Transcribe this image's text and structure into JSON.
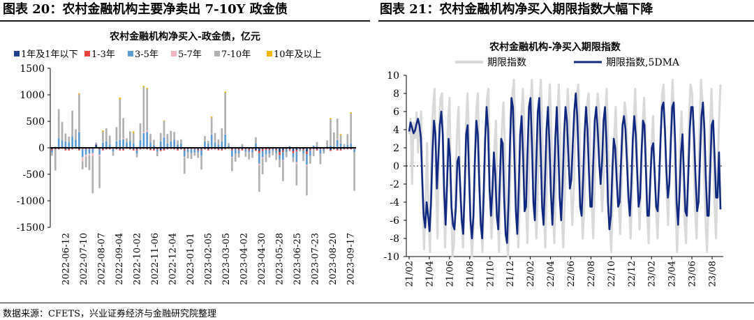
{
  "left_panel": {
    "title": "图表 20：农村金融机构主要净卖出 7-10Y 政金债"
  },
  "right_panel": {
    "title": "图表 21：农村金融机构净买入期限指数大幅下降"
  },
  "source": "数据来源：CFETS，兴业证券经济与金融研究院整理",
  "chart_data": [
    {
      "type": "bar",
      "stacked": true,
      "title": "农村金融机构净买入-政金债，亿元",
      "ylim": [
        -1500,
        1500
      ],
      "yticks": [
        -1500,
        -1000,
        -500,
        0,
        500,
        1000,
        1500
      ],
      "x_tick_labels": [
        "2022-06-12",
        "2022-07-10",
        "2022-08-07",
        "2022-09-04",
        "2022-10-02",
        "2022-11-06",
        "2022-12-04",
        "2023-01-01",
        "2023-02-05",
        "2023-03-05",
        "2023-04-02",
        "2023-04-30",
        "2023-05-28",
        "2023-06-25",
        "2023-07-23",
        "2023-08-20",
        "2023-09-17"
      ],
      "legend_position": "top",
      "series": [
        {
          "name": "1年及1年以下",
          "color": "#1f3f8f",
          "values": [
            -30,
            -20,
            -20,
            -10,
            -30,
            -30,
            -20,
            -10,
            -30,
            -15,
            -20,
            -10,
            -10,
            60,
            -20,
            -30,
            -20,
            -20,
            -10,
            -20,
            -30,
            -30,
            -10,
            -20,
            -30,
            -30,
            -20,
            -15,
            -20,
            -25,
            -30,
            -20,
            -40,
            -30,
            -20,
            -15,
            -20,
            -30,
            -20,
            -30,
            -20,
            -10,
            -20,
            -30,
            -30,
            -20,
            -30,
            -20,
            -20,
            -25,
            -30,
            -20,
            -10,
            -30,
            -20,
            -25,
            -30,
            -20,
            -30,
            -20,
            -40,
            -60,
            -30,
            -20,
            -25,
            -20,
            -30,
            -80,
            -50,
            -20,
            -30,
            -60,
            -40,
            -20,
            -30,
            -70,
            -30,
            -20,
            -30,
            -20,
            -20,
            -10,
            -40,
            -20,
            -30,
            -30,
            -20,
            -20,
            -20,
            -10
          ]
        },
        {
          "name": "1-3年",
          "color": "#e8403a",
          "values": [
            -20,
            -10,
            -10,
            -10,
            -20,
            -20,
            -10,
            -10,
            -20,
            -10,
            -10,
            -10,
            -10,
            0,
            -10,
            -20,
            -10,
            -10,
            -10,
            -10,
            -20,
            -20,
            -10,
            -10,
            -20,
            -20,
            -10,
            -10,
            -10,
            -20,
            -20,
            -10,
            -20,
            -20,
            -10,
            -10,
            -10,
            -20,
            -10,
            -20,
            -10,
            -10,
            -10,
            -20,
            -20,
            -10,
            -20,
            -10,
            -10,
            -20,
            -20,
            -10,
            -10,
            -20,
            -10,
            -20,
            -20,
            -10,
            -20,
            -10,
            -20,
            -40,
            -30,
            -20,
            -20,
            -10,
            -20,
            -60,
            -30,
            -10,
            -20,
            -40,
            -30,
            -10,
            -20,
            -50,
            -20,
            -10,
            -20,
            -10,
            -10,
            -10,
            -20,
            -10,
            -20,
            -20,
            -10,
            -10,
            -10,
            -10
          ]
        },
        {
          "name": "3-5年",
          "color": "#5b9bd5",
          "values": [
            -40,
            20,
            180,
            140,
            120,
            100,
            220,
            150,
            300,
            -150,
            -100,
            -90,
            -80,
            0,
            -100,
            100,
            120,
            60,
            -50,
            120,
            150,
            160,
            100,
            130,
            80,
            -60,
            150,
            280,
            300,
            100,
            50,
            -40,
            120,
            200,
            80,
            120,
            150,
            60,
            80,
            -120,
            -50,
            -80,
            -60,
            -40,
            -100,
            120,
            80,
            250,
            100,
            60,
            120,
            250,
            40,
            -120,
            -80,
            -60,
            20,
            -40,
            -30,
            -60,
            80,
            -200,
            -120,
            -80,
            -60,
            -30,
            -50,
            -80,
            -150,
            -50,
            30,
            -80,
            -200,
            -20,
            -60,
            -200,
            -100,
            40,
            30,
            -80,
            -30,
            20,
            40,
            30,
            150,
            80,
            30,
            60,
            80,
            -60
          ]
        },
        {
          "name": "5-7年",
          "color": "#f4b6c2",
          "values": [
            0,
            0,
            0,
            0,
            0,
            0,
            0,
            0,
            10,
            -80,
            -40,
            -30,
            -60,
            0,
            -30,
            10,
            0,
            0,
            0,
            0,
            10,
            20,
            0,
            0,
            0,
            0,
            10,
            20,
            30,
            0,
            0,
            0,
            0,
            10,
            0,
            0,
            0,
            0,
            0,
            -20,
            0,
            0,
            0,
            0,
            0,
            0,
            0,
            20,
            0,
            0,
            0,
            10,
            0,
            -20,
            0,
            0,
            0,
            0,
            0,
            0,
            0,
            -30,
            -20,
            0,
            0,
            0,
            0,
            0,
            -20,
            0,
            0,
            0,
            -40,
            0,
            0,
            -30,
            0,
            0,
            0,
            0,
            0,
            0,
            0,
            0,
            20,
            0,
            0,
            0,
            0,
            0
          ]
        },
        {
          "name": "7-10年",
          "color": "#b0b0b0",
          "values": [
            -60,
            -400,
            550,
            350,
            150,
            110,
            480,
            200,
            700,
            -150,
            -200,
            -280,
            -700,
            40,
            -600,
            200,
            250,
            170,
            -80,
            270,
            760,
            380,
            80,
            180,
            200,
            -70,
            300,
            850,
            780,
            160,
            100,
            -90,
            160,
            300,
            180,
            200,
            150,
            80,
            80,
            -300,
            -120,
            -110,
            -60,
            -100,
            -260,
            100,
            50,
            300,
            180,
            100,
            250,
            780,
            50,
            -250,
            -150,
            -80,
            50,
            -100,
            -140,
            -100,
            120,
            -500,
            -300,
            -150,
            -80,
            -80,
            -130,
            -150,
            -380,
            -100,
            -20,
            -90,
            -400,
            -20,
            -140,
            -550,
            -150,
            -130,
            80,
            -200,
            -50,
            120,
            500,
            260,
            380,
            160,
            40,
            200,
            570,
            -730
          ]
        },
        {
          "name": "10年及以上",
          "color": "#f5b800",
          "values": [
            0,
            0,
            0,
            0,
            0,
            0,
            0,
            0,
            20,
            0,
            0,
            0,
            0,
            0,
            0,
            20,
            0,
            0,
            0,
            0,
            30,
            0,
            0,
            0,
            30,
            0,
            0,
            20,
            20,
            0,
            0,
            0,
            0,
            10,
            0,
            0,
            0,
            0,
            0,
            0,
            0,
            0,
            0,
            0,
            0,
            0,
            0,
            20,
            0,
            0,
            0,
            20,
            0,
            0,
            0,
            0,
            0,
            0,
            0,
            0,
            0,
            0,
            0,
            0,
            0,
            0,
            0,
            0,
            0,
            0,
            0,
            0,
            0,
            0,
            0,
            0,
            0,
            0,
            0,
            0,
            0,
            0,
            20,
            0,
            0,
            20,
            0,
            0,
            20,
            0
          ]
        }
      ]
    },
    {
      "type": "line",
      "title": "农村金融机构-净买入期限指数",
      "ylim": [
        -10,
        10
      ],
      "yticks": [
        -10,
        -8,
        -6,
        -4,
        -2,
        0,
        2,
        4,
        6,
        8,
        10
      ],
      "x_tick_labels": [
        "21/02",
        "21/04",
        "21/06",
        "21/08",
        "21/10",
        "21/12",
        "22/02",
        "22/04",
        "22/06",
        "22/08",
        "22/10",
        "22/12",
        "23/02",
        "23/04",
        "23/06",
        "23/08"
      ],
      "legend_position": "top",
      "series": [
        {
          "name": "期限指数",
          "color": "#d9d9d9",
          "values": [
            3.5,
            5.2,
            -2.0,
            4.8,
            3.1,
            5.9,
            1.5,
            4.2,
            6.0,
            -3.5,
            -9.2,
            -4.0,
            2.5,
            -6.0,
            -9.5,
            3.0,
            6.5,
            8.5,
            -2.0,
            -8.0,
            4.5,
            7.5,
            8.0,
            -2.5,
            -9.0,
            -3.0,
            5.0,
            7.5,
            -3.5,
            -10.0,
            -8.5,
            -2.0,
            3.5,
            6.5,
            -1.5,
            -6.0,
            -9.0,
            -3.5,
            4.5,
            8.0,
            3.0,
            -6.5,
            -10.0,
            -7.0,
            2.0,
            6.5,
            8.0,
            -1.0,
            -6.5,
            -9.5,
            -4.0,
            3.0,
            7.5,
            8.5,
            -2.5,
            -8.0,
            -5.0,
            2.0,
            5.0,
            -4.5,
            -9.5,
            -3.0,
            4.0,
            7.0,
            2.0,
            -7.0,
            -10.0,
            -6.0,
            3.0,
            8.0,
            9.5,
            2.5,
            -5.5,
            -9.0,
            -3.0,
            5.5,
            8.5,
            4.0,
            -4.0,
            -8.5,
            -2.0,
            6.0,
            9.5,
            5.0,
            -3.0,
            -8.0,
            -2.5,
            7.0,
            9.5,
            3.5,
            -5.0,
            -9.0,
            -1.5,
            6.0,
            9.0,
            4.0,
            -4.5,
            -8.5,
            -2.0,
            5.5,
            9.0,
            3.0,
            -5.5,
            -9.0,
            -3.0,
            4.5,
            8.5,
            5.0,
            -2.0,
            -6.5,
            -2.5,
            4.0,
            8.0,
            9.0,
            3.0,
            -3.5,
            -8.0,
            -4.5,
            2.5,
            7.0,
            8.0,
            1.5,
            -4.0,
            -8.0,
            -2.0,
            5.5,
            8.0,
            6.0,
            -1.5,
            -5.0,
            -1.0,
            5.5,
            8.5,
            2.0,
            -6.0,
            -9.5,
            -3.5,
            3.0,
            6.5,
            1.0,
            -3.5,
            -7.5,
            -1.0,
            4.0,
            7.0,
            5.5,
            0.5,
            -4.5,
            -8.0,
            -2.5,
            4.5,
            8.5,
            3.5,
            -3.0,
            -7.0,
            -1.0,
            4.5,
            7.5,
            3.0,
            -5.0,
            -8.5,
            -2.5,
            2.5,
            5.5,
            0.0,
            -5.0,
            -8.0,
            -3.0,
            3.5,
            8.0,
            9.0,
            3.5,
            -2.5,
            -6.5,
            -1.0,
            5.5,
            9.5,
            5.0,
            -4.5,
            -9.5,
            -5.0,
            2.5,
            6.0,
            0.5,
            -6.0,
            -8.5,
            -2.0,
            5.5,
            9.0,
            8.0,
            1.5,
            -4.5,
            -8.0,
            -3.0,
            4.0,
            9.5,
            7.0,
            -0.5,
            -6.0,
            -9.5,
            -4.0,
            4.0,
            8.5,
            3.5,
            -4.0,
            -8.0,
            -1.5,
            5.0,
            9.0
          ]
        },
        {
          "name": "期限指数,5DMA",
          "color": "#0f2a80",
          "values": [
            3.8,
            4.8,
            4.2,
            3.6,
            3.9,
            4.6,
            5.2,
            4.5,
            3.2,
            -1.5,
            -5.5,
            -6.8,
            -4.0,
            -5.5,
            -7.2,
            -4.0,
            1.5,
            5.0,
            3.5,
            -2.5,
            1.0,
            4.5,
            6.0,
            3.5,
            -3.0,
            -6.5,
            -2.0,
            3.0,
            1.0,
            -4.5,
            -6.5,
            -7.0,
            -4.5,
            0.5,
            1.0,
            -2.5,
            -6.0,
            -7.5,
            -2.5,
            3.5,
            4.5,
            -1.0,
            -6.0,
            -8.0,
            -5.5,
            0.5,
            5.0,
            3.5,
            -2.0,
            -6.5,
            -8.0,
            -3.0,
            3.0,
            6.5,
            4.0,
            -2.5,
            -5.5,
            -2.5,
            1.5,
            -1.0,
            -5.5,
            -7.0,
            -2.0,
            3.0,
            2.5,
            -3.5,
            -7.5,
            -8.5,
            -4.0,
            2.5,
            7.5,
            6.5,
            1.0,
            -5.0,
            -7.5,
            -2.5,
            3.5,
            5.5,
            1.0,
            -5.0,
            -4.5,
            1.5,
            6.5,
            7.5,
            2.5,
            -4.0,
            -6.0,
            0.5,
            6.0,
            7.5,
            1.5,
            -4.5,
            -6.5,
            -1.5,
            4.0,
            6.5,
            2.5,
            -3.0,
            -6.5,
            -2.5,
            3.0,
            6.5,
            2.0,
            -3.5,
            -6.0,
            -2.0,
            3.5,
            6.5,
            5.0,
            1.0,
            -2.5,
            -1.5,
            2.5,
            6.0,
            8.0,
            5.5,
            0.5,
            -4.5,
            -5.5,
            -1.5,
            3.5,
            6.5,
            4.0,
            -0.5,
            -4.5,
            -4.5,
            0.5,
            5.0,
            6.5,
            4.0,
            0.5,
            -2.0,
            0.5,
            5.0,
            6.5,
            2.5,
            -4.0,
            -7.0,
            -5.5,
            -0.5,
            3.0,
            2.0,
            -1.5,
            -4.5,
            -4.0,
            0.5,
            4.5,
            5.5,
            4.0,
            0.5,
            -3.5,
            -5.5,
            -2.0,
            3.0,
            5.5,
            3.5,
            -0.5,
            -4.5,
            -3.5,
            1.5,
            5.0,
            4.5,
            -0.5,
            -5.5,
            -5.5,
            -1.5,
            2.0,
            2.5,
            -1.0,
            -4.5,
            -5.0,
            -1.5,
            3.0,
            6.5,
            7.0,
            4.0,
            -0.5,
            -3.5,
            -2.0,
            2.5,
            6.5,
            7.0,
            2.5,
            -4.0,
            -6.5,
            -3.0,
            1.5,
            3.5,
            -1.0,
            -5.0,
            -5.5,
            -1.0,
            4.0,
            6.5,
            6.5,
            3.0,
            -1.5,
            -5.0,
            -4.0,
            1.0,
            5.5,
            7.0,
            4.0,
            -1.5,
            -5.5,
            -5.5,
            -0.5,
            4.5,
            5.0,
            1.0,
            -3.5,
            -3.5,
            1.5,
            -4.8
          ]
        }
      ]
    }
  ]
}
